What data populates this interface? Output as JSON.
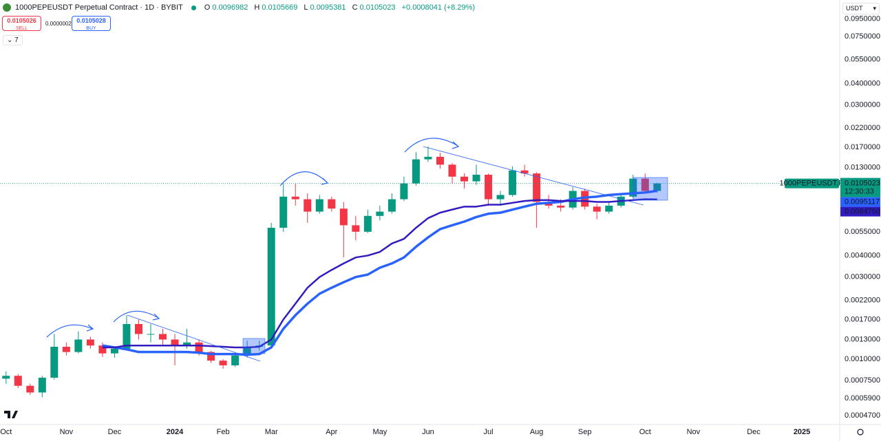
{
  "header": {
    "title": "1000PEPEUSDT Perpetual Contract · 1D · BYBIT",
    "ohlc": [
      {
        "key": "O",
        "value": "0.0096982"
      },
      {
        "key": "H",
        "value": "0.0105669"
      },
      {
        "key": "L",
        "value": "0.0095381"
      },
      {
        "key": "C",
        "value": "0.0105023"
      }
    ],
    "change": "+0.0008041 (+8.29%)"
  },
  "order_panel": {
    "sell_price": "0.0105026",
    "sell_label": "SELL",
    "spread": "0.0000002",
    "buy_price": "0.0105028",
    "buy_label": "BUY",
    "indicators_count": "7"
  },
  "currency": "USDT",
  "chart_data": {
    "type": "candlestick",
    "log_scale": true,
    "grid": false,
    "up_color": "#089981",
    "down_color": "#f23645",
    "categories": [
      "Oct",
      null,
      null,
      null,
      null,
      "Nov",
      null,
      null,
      null,
      "Dec",
      null,
      null,
      null,
      null,
      "2024",
      null,
      null,
      null,
      "Feb",
      null,
      null,
      null,
      "Mar",
      null,
      null,
      null,
      null,
      "Apr",
      null,
      null,
      null,
      "May",
      null,
      null,
      null,
      "Jun",
      null,
      null,
      null,
      null,
      "Jul",
      null,
      null,
      null,
      "Aug",
      null,
      null,
      null,
      "Sep",
      null,
      null,
      null,
      null,
      "Oct",
      null,
      null,
      null,
      "Nov",
      null,
      null,
      null,
      null,
      "Dec",
      null,
      null,
      null,
      "2025",
      null,
      null
    ],
    "open": [
      0.00077,
      0.0008,
      0.0007,
      0.00064,
      0.00078,
      0.00118,
      0.0011,
      0.0013,
      0.0012,
      0.00108,
      0.00115,
      0.0016,
      0.0014,
      0.0014,
      0.0013,
      0.0012,
      0.00125,
      0.0011,
      0.00098,
      0.00092,
      0.00105,
      0.00118,
      0.0012,
      0.0058,
      0.0088,
      0.0085,
      0.0072,
      0.0085,
      0.0075,
      0.006,
      0.0055,
      0.0068,
      0.0072,
      0.0085,
      0.0105,
      0.0145,
      0.015,
      0.0135,
      0.0115,
      0.0108,
      0.0118,
      0.0085,
      0.009,
      0.0125,
      0.012,
      0.0082,
      0.0078,
      0.0076,
      0.0095,
      0.0077,
      0.0072,
      0.0078,
      0.0088,
      0.0112,
      0.0095,
      null,
      null,
      null,
      null,
      null,
      null,
      null,
      null,
      null,
      null,
      null,
      null,
      null,
      null
    ],
    "high": [
      0.00085,
      0.00082,
      0.00072,
      0.0008,
      0.0014,
      0.00125,
      0.00145,
      0.00135,
      0.00125,
      0.00118,
      0.0018,
      0.0017,
      0.0016,
      0.0015,
      0.0014,
      0.0015,
      0.0013,
      0.00112,
      0.001,
      0.00108,
      0.00128,
      0.00128,
      0.0062,
      0.0105,
      0.0105,
      0.0092,
      0.009,
      0.0088,
      0.0082,
      0.0068,
      0.0074,
      0.0078,
      0.0092,
      0.0115,
      0.016,
      0.0172,
      0.0158,
      0.0138,
      0.012,
      0.0135,
      0.012,
      0.0095,
      0.0132,
      0.0135,
      0.0122,
      0.009,
      0.0085,
      0.01,
      0.0098,
      0.008,
      0.0082,
      0.009,
      0.0118,
      0.012,
      0.0106,
      null,
      null,
      null,
      null,
      null,
      null,
      null,
      null,
      null,
      null,
      null,
      null,
      null,
      null
    ],
    "low": [
      0.00072,
      0.00068,
      0.00062,
      0.0006,
      0.00076,
      0.00105,
      0.00108,
      0.00115,
      0.00103,
      0.00102,
      0.00113,
      0.0013,
      0.00125,
      0.0012,
      0.00092,
      0.00115,
      0.00105,
      0.00095,
      0.00088,
      0.0009,
      0.00102,
      0.00112,
      0.00118,
      0.0055,
      0.0078,
      0.0062,
      0.007,
      0.0072,
      0.0039,
      0.0049,
      0.0054,
      0.0064,
      0.007,
      0.0083,
      0.0102,
      0.014,
      0.0128,
      0.0105,
      0.0098,
      0.0103,
      0.0078,
      0.0078,
      0.0088,
      0.0115,
      0.0058,
      0.0075,
      0.0072,
      0.0074,
      0.0074,
      0.0065,
      0.007,
      0.0076,
      0.0086,
      0.0092,
      0.0093,
      null,
      null,
      null,
      null,
      null,
      null,
      null,
      null,
      null,
      null,
      null,
      null,
      null,
      null
    ],
    "close": [
      0.0008,
      0.0007,
      0.00064,
      0.00078,
      0.00118,
      0.0011,
      0.0013,
      0.0012,
      0.00108,
      0.00115,
      0.0016,
      0.0014,
      0.0014,
      0.0013,
      0.0012,
      0.00125,
      0.0011,
      0.00098,
      0.00092,
      0.00105,
      0.00118,
      0.0012,
      0.0058,
      0.0088,
      0.0085,
      0.0072,
      0.0085,
      0.0075,
      0.006,
      0.0055,
      0.0068,
      0.0072,
      0.0085,
      0.0105,
      0.0145,
      0.015,
      0.0135,
      0.0115,
      0.0108,
      0.0118,
      0.0085,
      0.009,
      0.0125,
      0.012,
      0.0082,
      0.0078,
      0.0076,
      0.0095,
      0.0077,
      0.0072,
      0.0078,
      0.0088,
      0.0112,
      0.0095,
      0.0105023,
      null,
      null,
      null,
      null,
      null,
      null,
      null,
      null,
      null,
      null,
      null,
      null,
      null,
      null
    ],
    "series": [
      {
        "color": "#2962ff",
        "width": 3.5,
        "last": {
          "value": 0.0095117,
          "label": "0.0095117"
        },
        "values": [
          null,
          null,
          null,
          null,
          null,
          null,
          null,
          null,
          0.0012,
          0.00117,
          0.00114,
          0.0011,
          0.0011,
          0.0011,
          0.0011,
          0.0011,
          0.00109,
          0.00107,
          0.00107,
          0.00107,
          0.00106,
          0.00107,
          0.00117,
          0.0015,
          0.0018,
          0.0021,
          0.0024,
          0.0026,
          0.0028,
          0.003,
          0.0031,
          0.0034,
          0.0036,
          0.0039,
          0.0045,
          0.0051,
          0.0057,
          0.006,
          0.0063,
          0.0067,
          0.007,
          0.0071,
          0.0074,
          0.0077,
          0.008,
          0.0081,
          0.0082,
          0.0085,
          0.0087,
          0.0088,
          0.009,
          0.0091,
          0.0092,
          0.0093,
          0.0095117,
          null,
          null,
          null,
          null,
          null,
          null,
          null,
          null,
          null,
          null,
          null,
          null,
          null,
          null
        ]
      },
      {
        "color": "#311bbf",
        "width": 2.5,
        "last": {
          "value": 0.008475,
          "label": "0.0084750"
        },
        "values": [
          null,
          null,
          null,
          null,
          null,
          null,
          null,
          null,
          0.00117,
          0.00117,
          0.0012,
          0.0012,
          0.0012,
          0.0012,
          0.0012,
          0.0012,
          0.0012,
          0.00119,
          0.00118,
          0.00117,
          0.00117,
          0.00118,
          0.0013,
          0.0017,
          0.0021,
          0.0026,
          0.003,
          0.0033,
          0.0036,
          0.0039,
          0.004,
          0.0042,
          0.0047,
          0.005,
          0.0058,
          0.0066,
          0.0071,
          0.0074,
          0.0077,
          0.0077,
          0.0079,
          0.0079,
          0.0081,
          0.0083,
          0.0084,
          0.0084,
          0.0083,
          0.0083,
          0.0083,
          0.0082,
          0.0082,
          0.0083,
          0.0084,
          0.0085,
          0.008475,
          null,
          null,
          null,
          null,
          null,
          null,
          null,
          null,
          null,
          null,
          null,
          null,
          null,
          null
        ]
      }
    ],
    "last_price": {
      "value": 0.0105023,
      "label": "0.0105023"
    },
    "symbol_label": "1000PEPEUSDT.P",
    "countdown": "12:30:33",
    "ylim": [
      0.000417,
      0.1223
    ],
    "yticks": [
      {
        "value": 0.095,
        "label": "0.0950000"
      },
      {
        "value": 0.075,
        "label": "0.0750000"
      },
      {
        "value": 0.055,
        "label": "0.0550000"
      },
      {
        "value": 0.04,
        "label": "0.0400000"
      },
      {
        "value": 0.03,
        "label": "0.0300000"
      },
      {
        "value": 0.022,
        "label": "0.0220000"
      },
      {
        "value": 0.017,
        "label": "0.0170000"
      },
      {
        "value": 0.013,
        "label": "0.0130000"
      },
      {
        "value": 0.0055,
        "label": "0.0055000"
      },
      {
        "value": 0.004,
        "label": "0.0040000"
      },
      {
        "value": 0.003,
        "label": "0.0030000"
      },
      {
        "value": 0.0022,
        "label": "0.0022000"
      },
      {
        "value": 0.0017,
        "label": "0.0017000"
      },
      {
        "value": 0.0013,
        "label": "0.0013000"
      },
      {
        "value": 0.001,
        "label": "0.0010000"
      },
      {
        "value": 0.00075,
        "label": "0.0007500"
      },
      {
        "value": 0.00059,
        "label": "0.0005900"
      },
      {
        "value": 0.00047,
        "label": "0.0004700"
      }
    ]
  }
}
